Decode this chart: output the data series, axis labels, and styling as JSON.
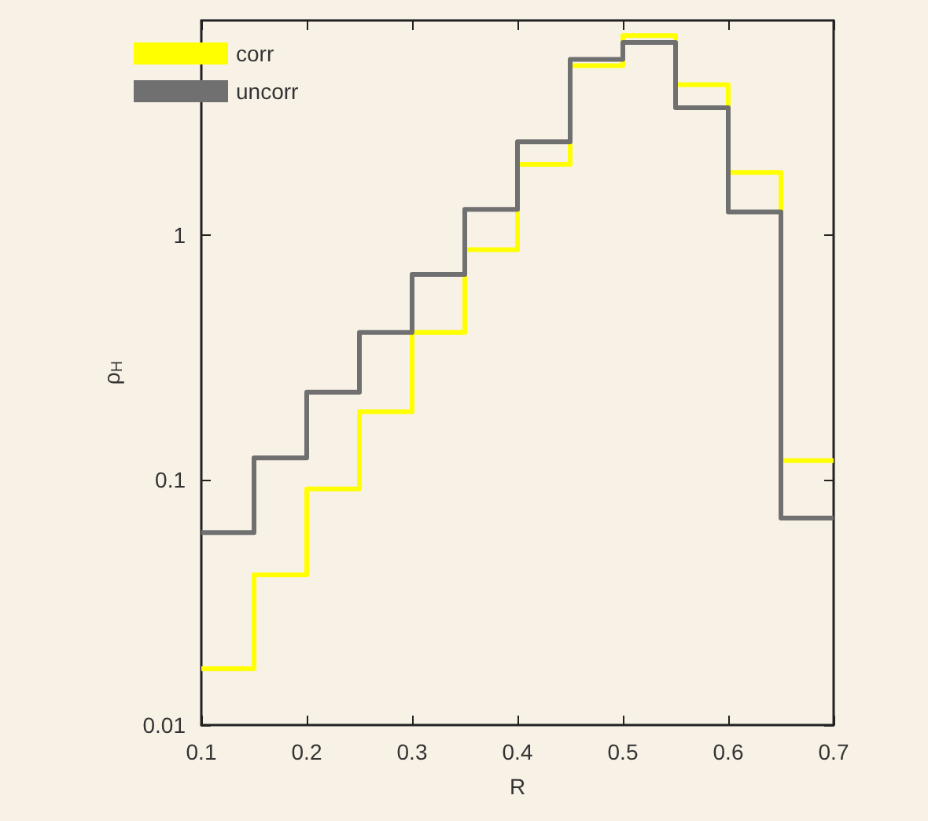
{
  "chart_data": {
    "type": "histogram",
    "xlabel": "R",
    "ylabel": "ρ$_{H}$",
    "bins": [
      0.1,
      0.15,
      0.2,
      0.25,
      0.3,
      0.35,
      0.4,
      0.45,
      0.5,
      0.55,
      0.6,
      0.65,
      0.7
    ],
    "series": [
      {
        "name": "corr",
        "color": "#ffff00",
        "values": [
          0.017,
          0.041,
          0.092,
          0.19,
          0.4,
          0.87,
          1.94,
          4.9,
          6.5,
          4.1,
          1.8,
          0.12
        ]
      },
      {
        "name": "uncorr",
        "color": "#707070",
        "values": [
          0.061,
          0.123,
          0.228,
          0.4,
          0.69,
          1.27,
          2.4,
          5.2,
          6.1,
          3.3,
          1.24,
          0.07
        ]
      }
    ],
    "log": "y",
    "xlim": [
      0.1,
      0.7
    ],
    "xticks": [
      0.1,
      0.2,
      0.3,
      0.4,
      0.5,
      0.6,
      0.7
    ],
    "ylim": [
      0.01,
      7.5
    ],
    "yticks": [
      0.01,
      0.1,
      1
    ],
    "grid": false,
    "legend": "top left"
  }
}
